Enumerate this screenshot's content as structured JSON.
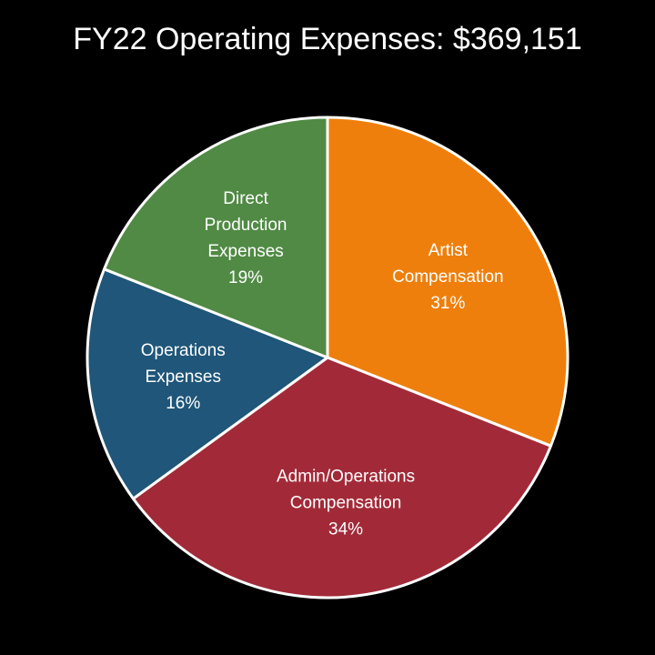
{
  "chart_data": {
    "type": "pie",
    "title": "FY22 Operating Expenses: $369,151",
    "start_angle_deg": 0,
    "direction": "clockwise",
    "legend": "none",
    "slices": [
      {
        "name": "Artist Compensation",
        "value": 31,
        "label_lines": [
          "Artist",
          "Compensation",
          "31%"
        ],
        "color": "#ef7f0c"
      },
      {
        "name": "Admin/Operations Compensation",
        "value": 34,
        "label_lines": [
          "Admin/Operations",
          "Compensation",
          "34%"
        ],
        "color": "#a22a38"
      },
      {
        "name": "Operations Expenses",
        "value": 16,
        "label_lines": [
          "Operations",
          "Expenses",
          "16%"
        ],
        "color": "#1f5679"
      },
      {
        "name": "Direct Production Expenses",
        "value": 19,
        "label_lines": [
          "Direct",
          "Production",
          "Expenses",
          "19%"
        ],
        "color": "#508a44"
      }
    ]
  }
}
